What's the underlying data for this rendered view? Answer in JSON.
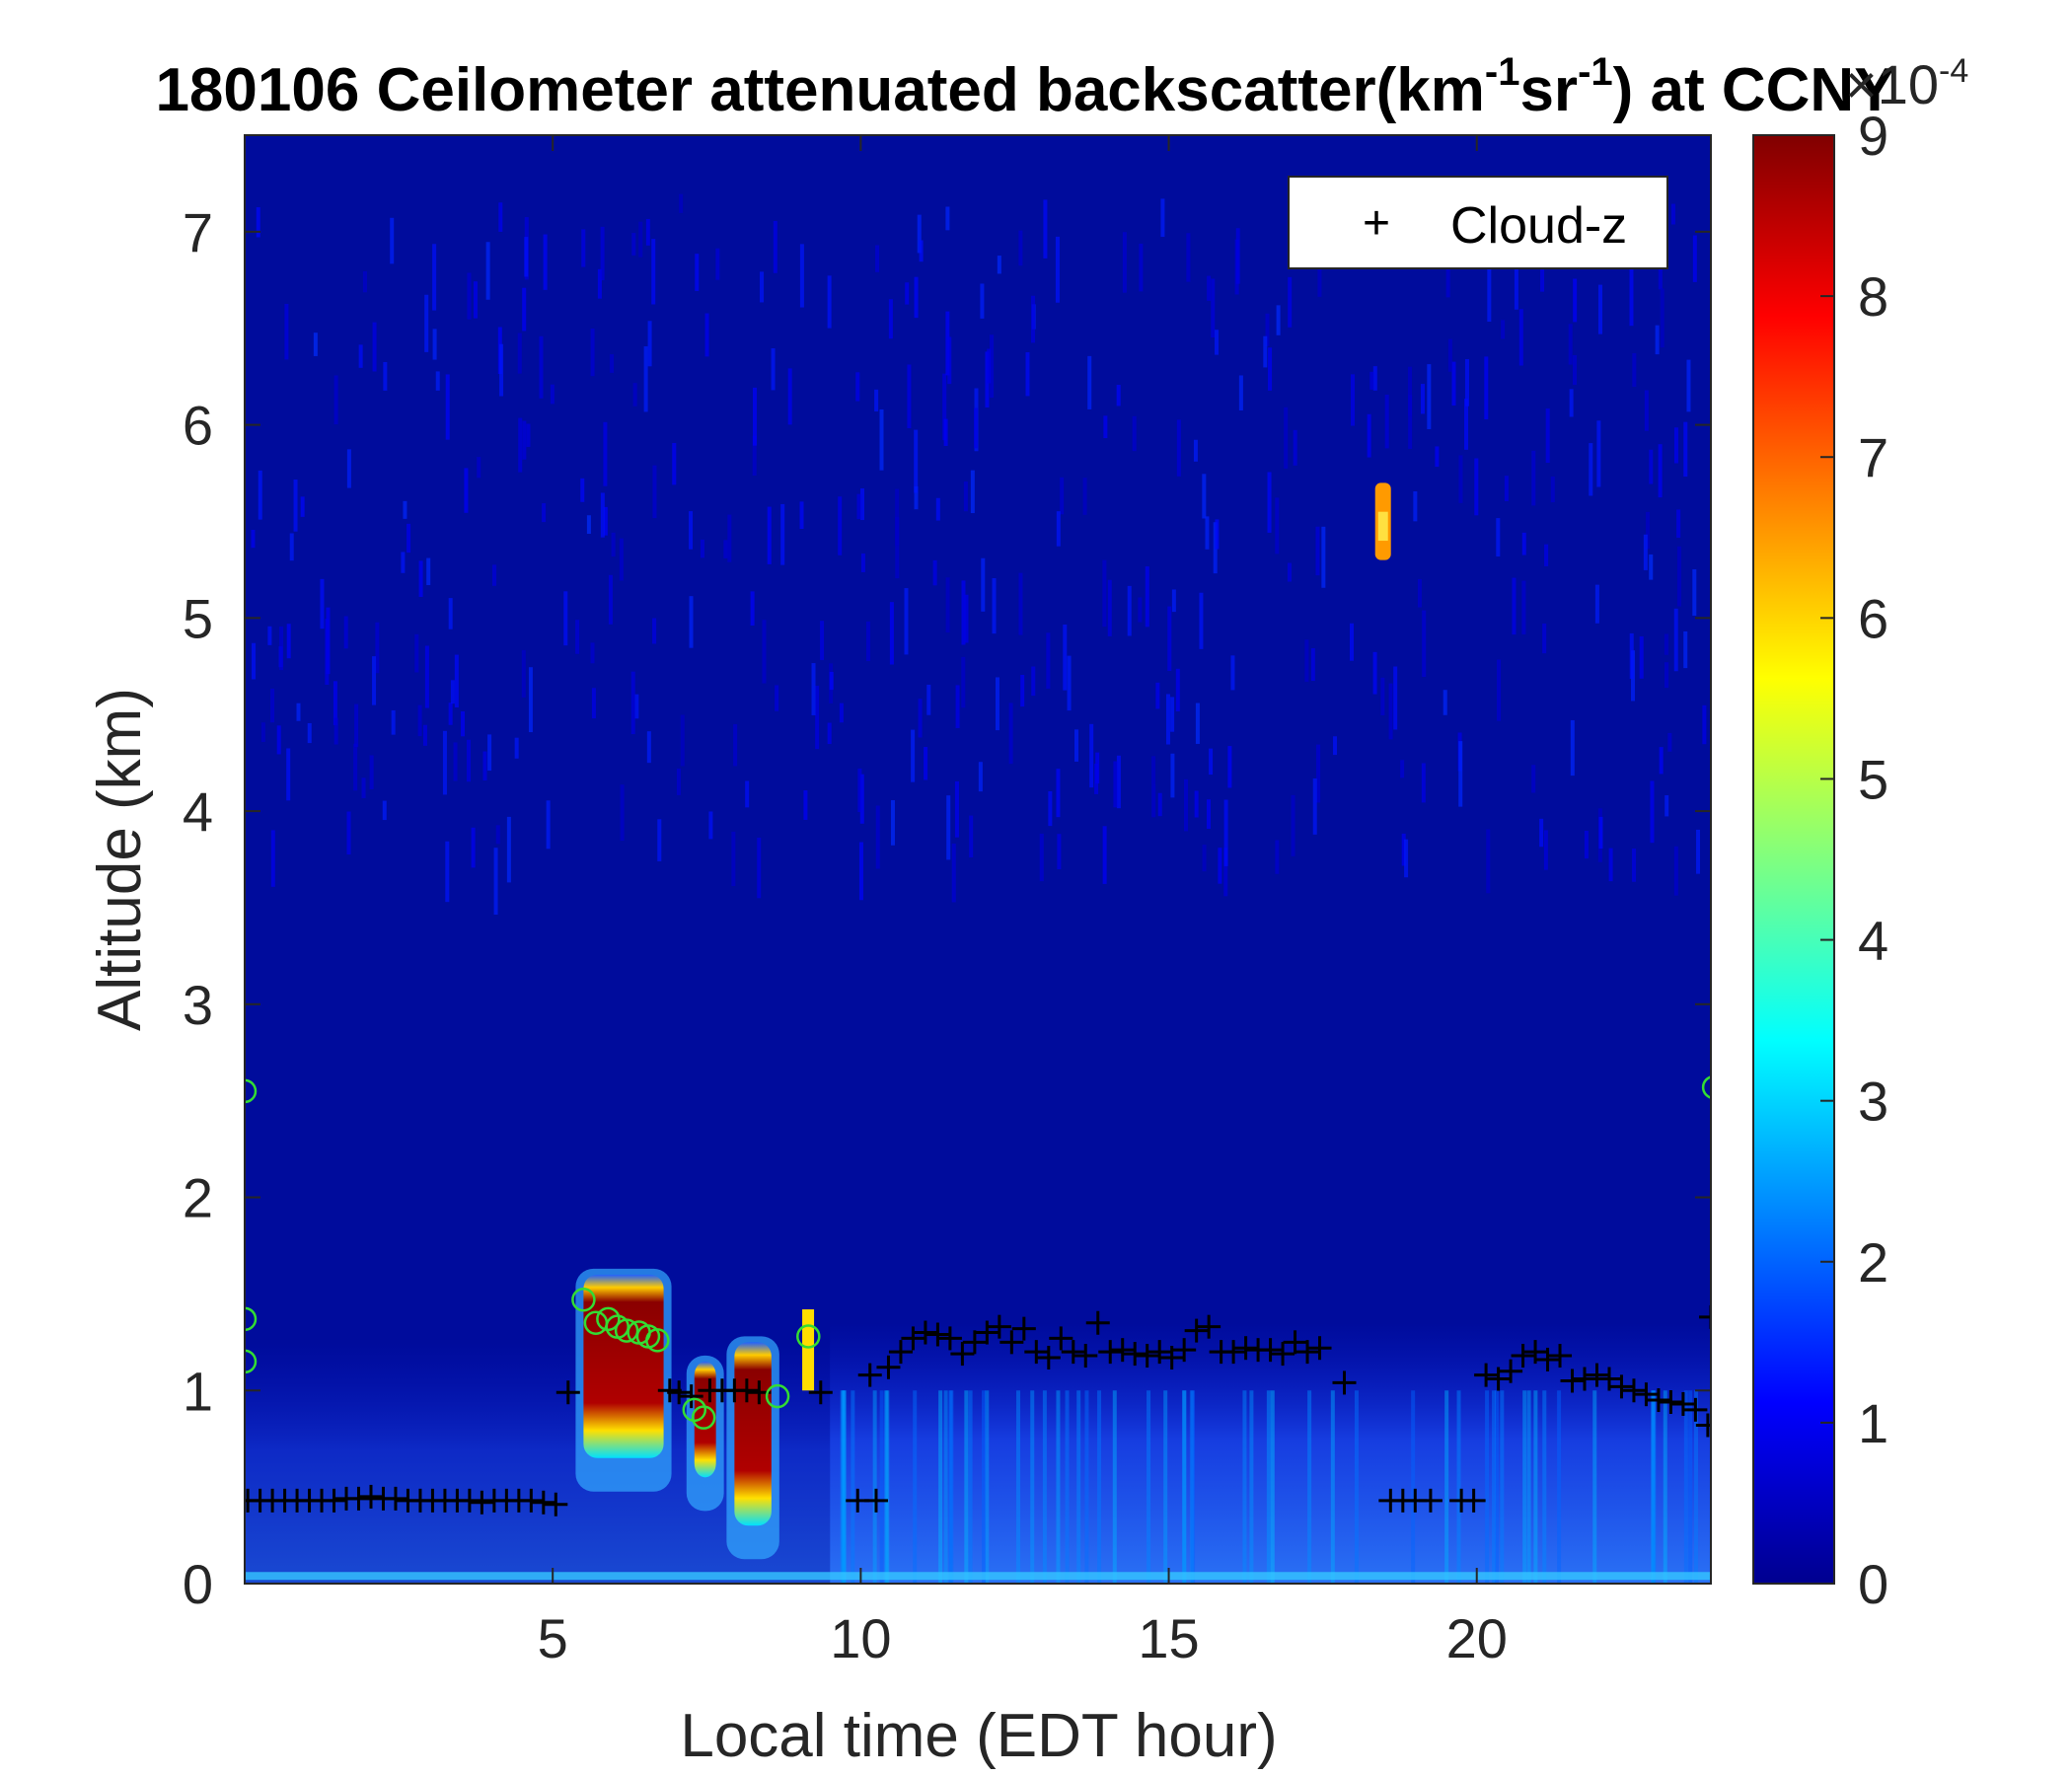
{
  "chart_data": {
    "type": "heatmap",
    "title_main": "180106 Ceilometer attenuated backscatter(km",
    "title_sup1": "-1",
    "title_mid": "sr",
    "title_sup2": "-1",
    "title_end": ") at CCNY",
    "xlabel": "Local time (EDT hour)",
    "ylabel": "Altitude (km)",
    "xlim": [
      0,
      23.8
    ],
    "ylim": [
      0,
      7.5
    ],
    "xticks": [
      5,
      10,
      15,
      20
    ],
    "yticks": [
      0,
      1,
      2,
      3,
      4,
      5,
      6,
      7
    ],
    "colorbar": {
      "colormap": "jet",
      "range": [
        0,
        9
      ],
      "ticks": [
        0,
        1,
        2,
        3,
        4,
        5,
        6,
        7,
        8,
        9
      ],
      "exponent_base": "×10",
      "exponent_power": "-4"
    },
    "legend": {
      "position": "top-right",
      "entries": [
        {
          "marker": "+",
          "label": "Cloud-z"
        }
      ]
    },
    "series": [
      {
        "name": "Cloud-z",
        "marker": "plus",
        "color": "#000000",
        "points": [
          [
            0.05,
            0.43
          ],
          [
            0.25,
            0.43
          ],
          [
            0.45,
            0.43
          ],
          [
            0.65,
            0.43
          ],
          [
            0.85,
            0.43
          ],
          [
            1.05,
            0.43
          ],
          [
            1.25,
            0.43
          ],
          [
            1.45,
            0.43
          ],
          [
            1.65,
            0.44
          ],
          [
            1.85,
            0.44
          ],
          [
            2.05,
            0.45
          ],
          [
            2.25,
            0.44
          ],
          [
            2.45,
            0.44
          ],
          [
            2.65,
            0.43
          ],
          [
            2.85,
            0.43
          ],
          [
            3.05,
            0.43
          ],
          [
            3.25,
            0.43
          ],
          [
            3.45,
            0.43
          ],
          [
            3.65,
            0.43
          ],
          [
            3.85,
            0.42
          ],
          [
            4.05,
            0.43
          ],
          [
            4.25,
            0.43
          ],
          [
            4.45,
            0.43
          ],
          [
            4.65,
            0.43
          ],
          [
            4.85,
            0.42
          ],
          [
            5.05,
            0.41
          ],
          [
            5.25,
            0.99
          ],
          [
            6.9,
            1.0
          ],
          [
            7.05,
            0.99
          ],
          [
            7.25,
            0.97
          ],
          [
            7.55,
            1.0
          ],
          [
            7.75,
            1.0
          ],
          [
            7.95,
            1.0
          ],
          [
            8.15,
            1.0
          ],
          [
            8.35,
            0.99
          ],
          [
            9.35,
            0.99
          ],
          [
            9.95,
            0.43
          ],
          [
            10.25,
            0.43
          ],
          [
            10.15,
            1.08
          ],
          [
            10.45,
            1.12
          ],
          [
            10.65,
            1.2
          ],
          [
            10.85,
            1.27
          ],
          [
            11.05,
            1.3
          ],
          [
            11.25,
            1.29
          ],
          [
            11.45,
            1.27
          ],
          [
            11.65,
            1.19
          ],
          [
            11.85,
            1.25
          ],
          [
            12.05,
            1.3
          ],
          [
            12.25,
            1.33
          ],
          [
            12.45,
            1.25
          ],
          [
            12.65,
            1.32
          ],
          [
            12.85,
            1.2
          ],
          [
            13.05,
            1.17
          ],
          [
            13.25,
            1.27
          ],
          [
            13.45,
            1.2
          ],
          [
            13.65,
            1.18
          ],
          [
            13.85,
            1.35
          ],
          [
            14.05,
            1.2
          ],
          [
            14.25,
            1.21
          ],
          [
            14.45,
            1.19
          ],
          [
            14.65,
            1.18
          ],
          [
            14.85,
            1.2
          ],
          [
            15.05,
            1.17
          ],
          [
            15.25,
            1.21
          ],
          [
            15.45,
            1.31
          ],
          [
            15.65,
            1.33
          ],
          [
            15.85,
            1.2
          ],
          [
            16.05,
            1.2
          ],
          [
            16.25,
            1.22
          ],
          [
            16.45,
            1.21
          ],
          [
            16.65,
            1.21
          ],
          [
            16.85,
            1.19
          ],
          [
            17.05,
            1.25
          ],
          [
            17.25,
            1.2
          ],
          [
            17.45,
            1.22
          ],
          [
            17.85,
            1.04
          ],
          [
            18.6,
            0.43
          ],
          [
            18.8,
            0.43
          ],
          [
            19.0,
            0.43
          ],
          [
            19.25,
            0.43
          ],
          [
            19.75,
            0.43
          ],
          [
            19.95,
            0.43
          ],
          [
            20.15,
            1.08
          ],
          [
            20.35,
            1.06
          ],
          [
            20.55,
            1.1
          ],
          [
            20.75,
            1.18
          ],
          [
            20.95,
            1.2
          ],
          [
            21.15,
            1.16
          ],
          [
            21.35,
            1.18
          ],
          [
            21.55,
            1.05
          ],
          [
            21.75,
            1.06
          ],
          [
            21.95,
            1.08
          ],
          [
            22.15,
            1.06
          ],
          [
            22.35,
            1.02
          ],
          [
            22.55,
            1.0
          ],
          [
            22.75,
            0.98
          ],
          [
            22.95,
            0.95
          ],
          [
            23.15,
            0.94
          ],
          [
            23.35,
            0.93
          ],
          [
            23.55,
            0.9
          ],
          [
            23.75,
            0.82
          ],
          [
            23.8,
            1.38
          ]
        ]
      },
      {
        "name": "",
        "marker": "circle",
        "color": "#33dd33",
        "points": [
          [
            0.0,
            2.55
          ],
          [
            0.0,
            1.37
          ],
          [
            0.0,
            1.15
          ],
          [
            5.5,
            1.47
          ],
          [
            5.7,
            1.35
          ],
          [
            5.9,
            1.37
          ],
          [
            6.05,
            1.33
          ],
          [
            6.2,
            1.31
          ],
          [
            6.4,
            1.3
          ],
          [
            6.55,
            1.28
          ],
          [
            6.7,
            1.26
          ],
          [
            7.3,
            0.9
          ],
          [
            7.45,
            0.86
          ],
          [
            8.65,
            0.97
          ],
          [
            9.15,
            1.28
          ],
          [
            23.85,
            2.57
          ]
        ]
      }
    ]
  }
}
